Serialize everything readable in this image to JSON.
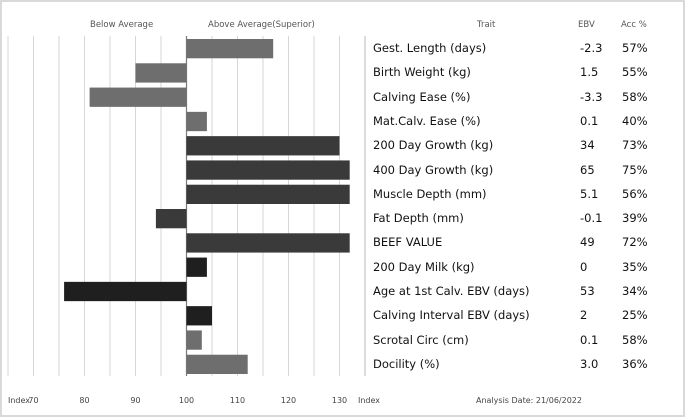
{
  "header": {
    "below_average": "Below Average",
    "above_average": "Above Average(Superior)",
    "trait": "Trait",
    "ebv": "EBV",
    "acc": "Acc %"
  },
  "footer": {
    "index_left": "Index",
    "index_right": "Index",
    "analysis_date": "Analysis Date: 21/06/2022"
  },
  "colors": {
    "grid": "#d6d6d6",
    "axis": "#7a7a7a",
    "divider": "#b8b8b8",
    "light_bar": "#6e6e6e",
    "dark_bar": "#3a3a3a",
    "darkest_bar": "#1f1f1f"
  },
  "chart_data": {
    "type": "bar",
    "orientation": "horizontal",
    "baseline": 100,
    "xlim": [
      65,
      135
    ],
    "xticks": [
      70,
      80,
      90,
      100,
      110,
      120,
      130
    ],
    "grid": true,
    "categories": [
      "Gest. Length (days)",
      "Birth Weight (kg)",
      "Calving Ease (%)",
      "Mat.Calv. Ease (%)",
      "200 Day Growth (kg)",
      "400 Day Growth (kg)",
      "Muscle Depth (mm)",
      "Fat Depth (mm)",
      "BEEF VALUE",
      "200 Day Milk (kg)",
      "Age at 1st Calv. EBV (days)",
      "Calving Interval EBV (days)",
      "Scrotal Circ (cm)",
      "Docility (%)"
    ],
    "values": [
      117,
      90,
      81,
      104,
      130,
      132,
      132,
      94,
      132,
      104,
      76,
      105,
      103,
      112
    ],
    "tone": [
      "light",
      "light",
      "light",
      "light",
      "dark",
      "dark",
      "dark",
      "dark",
      "dark",
      "darkest",
      "darkest",
      "darkest",
      "light",
      "light"
    ],
    "ebv": [
      "-2.3",
      "1.5",
      "-3.3",
      "0.1",
      "34",
      "65",
      "5.1",
      "-0.1",
      "49",
      "0",
      "53",
      "2",
      "0.1",
      "3.0"
    ],
    "acc": [
      "57%",
      "55%",
      "58%",
      "40%",
      "73%",
      "75%",
      "56%",
      "39%",
      "72%",
      "35%",
      "34%",
      "25%",
      "58%",
      "36%"
    ]
  }
}
